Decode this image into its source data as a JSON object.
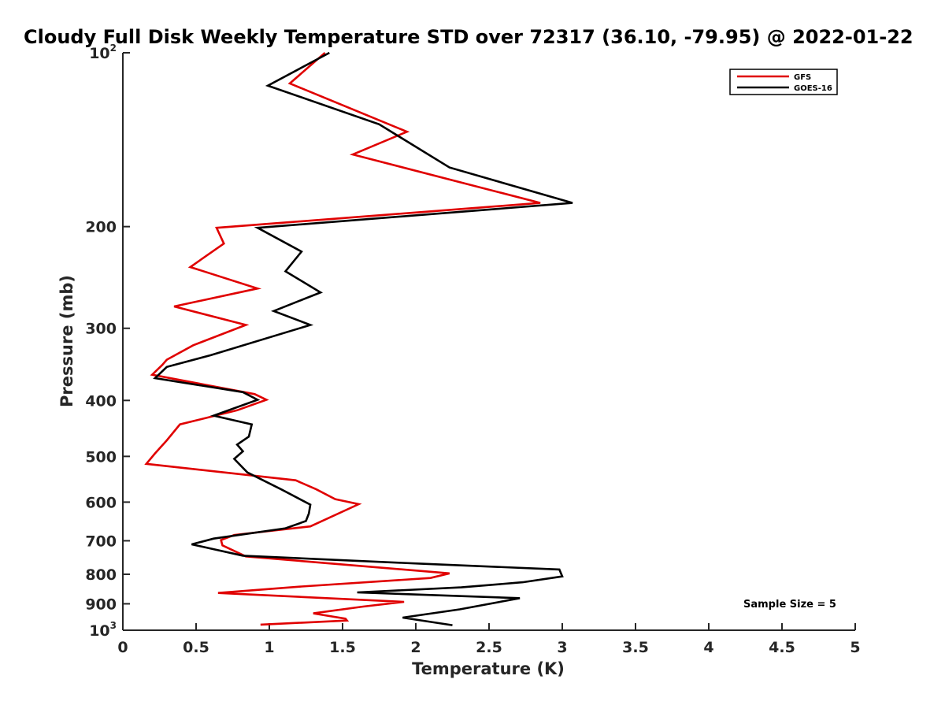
{
  "chart_data": {
    "type": "line",
    "title": "Cloudy Full Disk Weekly Temperature STD over 72317 (36.10, -79.95) @ 2022-01-22",
    "xlabel": "Temperature (K)",
    "ylabel": "Pressure (mb)",
    "xlim": [
      0,
      5
    ],
    "ylim": [
      100,
      1000
    ],
    "yscale": "log",
    "y_reversed": true,
    "x_ticks": [
      {
        "value": 0,
        "label": "0"
      },
      {
        "value": 0.5,
        "label": "0.5"
      },
      {
        "value": 1,
        "label": "1"
      },
      {
        "value": 1.5,
        "label": "1.5"
      },
      {
        "value": 2,
        "label": "2"
      },
      {
        "value": 2.5,
        "label": "2.5"
      },
      {
        "value": 3,
        "label": "3"
      },
      {
        "value": 3.5,
        "label": "3.5"
      },
      {
        "value": 4,
        "label": "4"
      },
      {
        "value": 4.5,
        "label": "4.5"
      },
      {
        "value": 5,
        "label": "5"
      }
    ],
    "y_ticks": [
      {
        "value": 100,
        "base": "10",
        "exp": "2"
      },
      {
        "value": 200,
        "label": "200"
      },
      {
        "value": 300,
        "label": "300"
      },
      {
        "value": 400,
        "label": "400"
      },
      {
        "value": 500,
        "label": "500"
      },
      {
        "value": 600,
        "label": "600"
      },
      {
        "value": 700,
        "label": "700"
      },
      {
        "value": 800,
        "label": "800"
      },
      {
        "value": 900,
        "label": "900"
      },
      {
        "value": 1000,
        "base": "10",
        "exp": "3"
      }
    ],
    "grid": false,
    "legend": "top-right",
    "annotation": "Sample Size = 5",
    "series": [
      {
        "name": "GFS",
        "color": "#e00000",
        "points": [
          [
            1.38,
            100
          ],
          [
            1.14,
            113
          ],
          [
            1.94,
            137
          ],
          [
            1.57,
            150
          ],
          [
            2.85,
            182
          ],
          [
            0.64,
            201
          ],
          [
            0.69,
            214
          ],
          [
            0.46,
            235
          ],
          [
            0.92,
            256
          ],
          [
            0.35,
            275
          ],
          [
            0.84,
            296
          ],
          [
            0.48,
            321
          ],
          [
            0.3,
            340
          ],
          [
            0.27,
            347
          ],
          [
            0.2,
            361
          ],
          [
            0.9,
            390
          ],
          [
            0.98,
            399
          ],
          [
            0.78,
            416
          ],
          [
            0.39,
            440
          ],
          [
            0.3,
            469
          ],
          [
            0.22,
            494
          ],
          [
            0.16,
            515
          ],
          [
            1.18,
            550
          ],
          [
            1.32,
            570
          ],
          [
            1.45,
            593
          ],
          [
            1.61,
            605
          ],
          [
            1.28,
            661
          ],
          [
            0.76,
            684
          ],
          [
            0.67,
            698
          ],
          [
            0.68,
            713
          ],
          [
            0.84,
            745
          ],
          [
            2.23,
            797
          ],
          [
            2.1,
            812
          ],
          [
            1.22,
            840
          ],
          [
            0.65,
            862
          ],
          [
            1.92,
            893
          ],
          [
            1.64,
            910
          ],
          [
            1.3,
            935
          ],
          [
            1.52,
            955
          ],
          [
            1.53,
            962
          ],
          [
            0.94,
            978
          ]
        ]
      },
      {
        "name": "GOES-16",
        "color": "#000000",
        "points": [
          [
            1.41,
            100
          ],
          [
            0.99,
            114
          ],
          [
            1.75,
            133
          ],
          [
            2.23,
            158
          ],
          [
            3.07,
            182
          ],
          [
            0.92,
            201
          ],
          [
            1.22,
            221
          ],
          [
            1.11,
            239
          ],
          [
            1.35,
            260
          ],
          [
            1.03,
            280
          ],
          [
            1.28,
            296
          ],
          [
            0.6,
            334
          ],
          [
            0.3,
            350
          ],
          [
            0.22,
            366
          ],
          [
            0.82,
            387
          ],
          [
            0.92,
            399
          ],
          [
            0.62,
            425
          ],
          [
            0.88,
            440
          ],
          [
            0.86,
            462
          ],
          [
            0.78,
            477
          ],
          [
            0.82,
            490
          ],
          [
            0.76,
            505
          ],
          [
            0.85,
            533
          ],
          [
            1.08,
            570
          ],
          [
            1.28,
            606
          ],
          [
            1.27,
            628
          ],
          [
            1.25,
            647
          ],
          [
            1.11,
            666
          ],
          [
            0.62,
            694
          ],
          [
            0.47,
            710
          ],
          [
            0.82,
            743
          ],
          [
            2.04,
            767
          ],
          [
            2.98,
            785
          ],
          [
            3.0,
            807
          ],
          [
            2.73,
            826
          ],
          [
            2.31,
            843
          ],
          [
            1.6,
            860
          ],
          [
            2.71,
            880
          ],
          [
            2.3,
            920
          ],
          [
            1.91,
            951
          ],
          [
            2.25,
            980
          ]
        ]
      }
    ]
  }
}
